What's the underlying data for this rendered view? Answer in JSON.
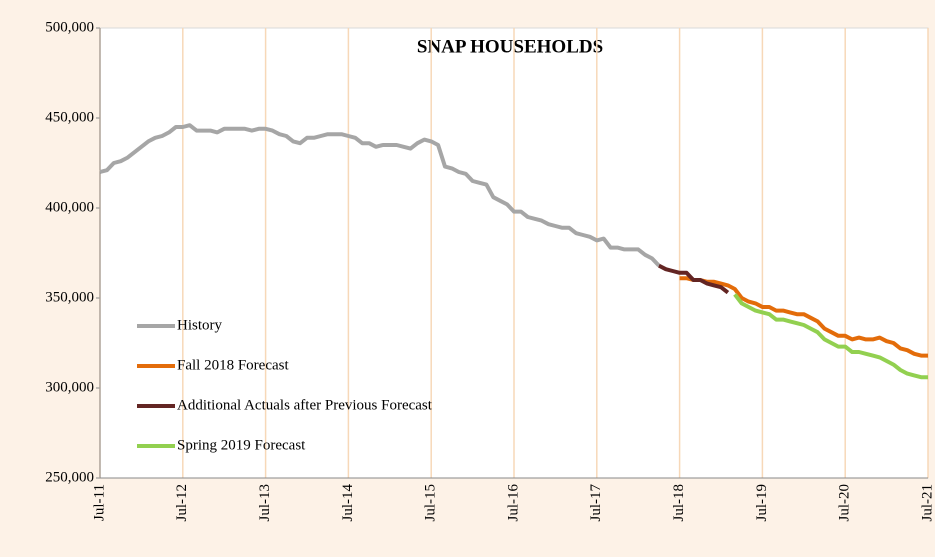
{
  "chart_data": {
    "type": "line",
    "title": "SNAP HOUSEHOLDS",
    "categories": [
      "Jul-11",
      null,
      null,
      null,
      null,
      null,
      null,
      null,
      null,
      null,
      null,
      null,
      "Jul-12",
      null,
      null,
      null,
      null,
      null,
      null,
      null,
      null,
      null,
      null,
      null,
      "Jul-13",
      null,
      null,
      null,
      null,
      null,
      null,
      null,
      null,
      null,
      null,
      null,
      "Jul-14",
      null,
      null,
      null,
      null,
      null,
      null,
      null,
      null,
      null,
      null,
      null,
      "Jul-15",
      null,
      null,
      null,
      null,
      null,
      null,
      null,
      null,
      null,
      null,
      null,
      "Jul-16",
      null,
      null,
      null,
      null,
      null,
      null,
      null,
      null,
      null,
      null,
      null,
      "Jul-17",
      null,
      null,
      null,
      null,
      null,
      null,
      null,
      null,
      null,
      null,
      null,
      "Jul-18",
      null,
      null,
      null,
      null,
      null,
      null,
      null,
      null,
      null,
      null,
      null,
      "Jul-19",
      null,
      null,
      null,
      null,
      null,
      null,
      null,
      null,
      null,
      null,
      null,
      "Jul-20",
      null,
      null,
      null,
      null,
      null,
      null,
      null,
      null,
      null,
      null,
      null,
      "Jul-21"
    ],
    "series": [
      {
        "name": "History",
        "color": "#a6a6a6",
        "values": [
          420000,
          421000,
          425000,
          426000,
          428000,
          431000,
          434000,
          437000,
          439000,
          440000,
          442000,
          445000,
          445000,
          446000,
          443000,
          443000,
          443000,
          442000,
          444000,
          444000,
          444000,
          444000,
          443000,
          444000,
          444000,
          443000,
          441000,
          440000,
          437000,
          436000,
          439000,
          439000,
          440000,
          441000,
          441000,
          441000,
          440000,
          439000,
          436000,
          436000,
          434000,
          435000,
          435000,
          435000,
          434000,
          433000,
          436000,
          438000,
          437000,
          435000,
          423000,
          422000,
          420000,
          419000,
          415000,
          414000,
          413000,
          406000,
          404000,
          402000,
          398000,
          398000,
          395000,
          394000,
          393000,
          391000,
          390000,
          389000,
          389000,
          386000,
          385000,
          384000,
          382000,
          383000,
          378000,
          378000,
          377000,
          377000,
          377000,
          374000,
          372000,
          368000,
          null,
          null,
          null,
          null,
          null,
          null,
          null,
          null,
          null,
          null,
          null,
          null,
          null,
          null,
          null,
          null,
          null,
          null,
          null,
          null,
          null,
          null,
          null,
          null,
          null,
          null,
          null,
          null,
          null,
          null,
          null,
          null,
          null,
          null,
          null,
          null,
          null,
          null,
          null
        ]
      },
      {
        "name": "Fall 2018 Forecast",
        "color": "#e36c0a",
        "values": [
          null,
          null,
          null,
          null,
          null,
          null,
          null,
          null,
          null,
          null,
          null,
          null,
          null,
          null,
          null,
          null,
          null,
          null,
          null,
          null,
          null,
          null,
          null,
          null,
          null,
          null,
          null,
          null,
          null,
          null,
          null,
          null,
          null,
          null,
          null,
          null,
          null,
          null,
          null,
          null,
          null,
          null,
          null,
          null,
          null,
          null,
          null,
          null,
          null,
          null,
          null,
          null,
          null,
          null,
          null,
          null,
          null,
          null,
          null,
          null,
          null,
          null,
          null,
          null,
          null,
          null,
          null,
          null,
          null,
          null,
          null,
          null,
          null,
          null,
          null,
          null,
          null,
          null,
          null,
          null,
          null,
          null,
          null,
          null,
          361000,
          361000,
          360000,
          360000,
          359000,
          359000,
          358000,
          357000,
          355000,
          350000,
          348000,
          347000,
          345000,
          345000,
          343000,
          343000,
          342000,
          341000,
          341000,
          339000,
          337000,
          333000,
          331000,
          329000,
          329000,
          327000,
          328000,
          327000,
          327000,
          328000,
          326000,
          325000,
          322000,
          321000,
          319000,
          318000,
          318000
        ]
      },
      {
        "name": "Additional Actuals after Previous Forecast",
        "color": "#632523",
        "values": [
          null,
          null,
          null,
          null,
          null,
          null,
          null,
          null,
          null,
          null,
          null,
          null,
          null,
          null,
          null,
          null,
          null,
          null,
          null,
          null,
          null,
          null,
          null,
          null,
          null,
          null,
          null,
          null,
          null,
          null,
          null,
          null,
          null,
          null,
          null,
          null,
          null,
          null,
          null,
          null,
          null,
          null,
          null,
          null,
          null,
          null,
          null,
          null,
          null,
          null,
          null,
          null,
          null,
          null,
          null,
          null,
          null,
          null,
          null,
          null,
          null,
          null,
          null,
          null,
          null,
          null,
          null,
          null,
          null,
          null,
          null,
          null,
          null,
          null,
          null,
          null,
          null,
          null,
          null,
          null,
          null,
          368000,
          366000,
          365000,
          364000,
          364000,
          360000,
          360000,
          358000,
          357000,
          356000,
          353000,
          null,
          null,
          null,
          null,
          null,
          null,
          null,
          null,
          null,
          null,
          null,
          null,
          null,
          null,
          null,
          null,
          null,
          null,
          null,
          null,
          null,
          null,
          null,
          null,
          null,
          null,
          null,
          null,
          null
        ]
      },
      {
        "name": "Spring 2019 Forecast",
        "color": "#92d050",
        "values": [
          null,
          null,
          null,
          null,
          null,
          null,
          null,
          null,
          null,
          null,
          null,
          null,
          null,
          null,
          null,
          null,
          null,
          null,
          null,
          null,
          null,
          null,
          null,
          null,
          null,
          null,
          null,
          null,
          null,
          null,
          null,
          null,
          null,
          null,
          null,
          null,
          null,
          null,
          null,
          null,
          null,
          null,
          null,
          null,
          null,
          null,
          null,
          null,
          null,
          null,
          null,
          null,
          null,
          null,
          null,
          null,
          null,
          null,
          null,
          null,
          null,
          null,
          null,
          null,
          null,
          null,
          null,
          null,
          null,
          null,
          null,
          null,
          null,
          null,
          null,
          null,
          null,
          null,
          null,
          null,
          null,
          null,
          null,
          null,
          null,
          null,
          null,
          null,
          null,
          null,
          null,
          null,
          352000,
          347000,
          345000,
          343000,
          342000,
          341000,
          338000,
          338000,
          337000,
          336000,
          335000,
          333000,
          331000,
          327000,
          325000,
          323000,
          323000,
          320000,
          320000,
          319000,
          318000,
          317000,
          315000,
          313000,
          310000,
          308000,
          307000,
          306000,
          306000
        ]
      }
    ],
    "ylim": [
      250000,
      500000
    ],
    "yticks": [
      {
        "value": 250000,
        "label": "250,000"
      },
      {
        "value": 300000,
        "label": "300,000"
      },
      {
        "value": 350000,
        "label": "350,000"
      },
      {
        "value": 400000,
        "label": "400,000"
      },
      {
        "value": 450000,
        "label": "450,000"
      },
      {
        "value": 500000,
        "label": "500,000"
      }
    ],
    "grid": true,
    "legend": "left"
  }
}
